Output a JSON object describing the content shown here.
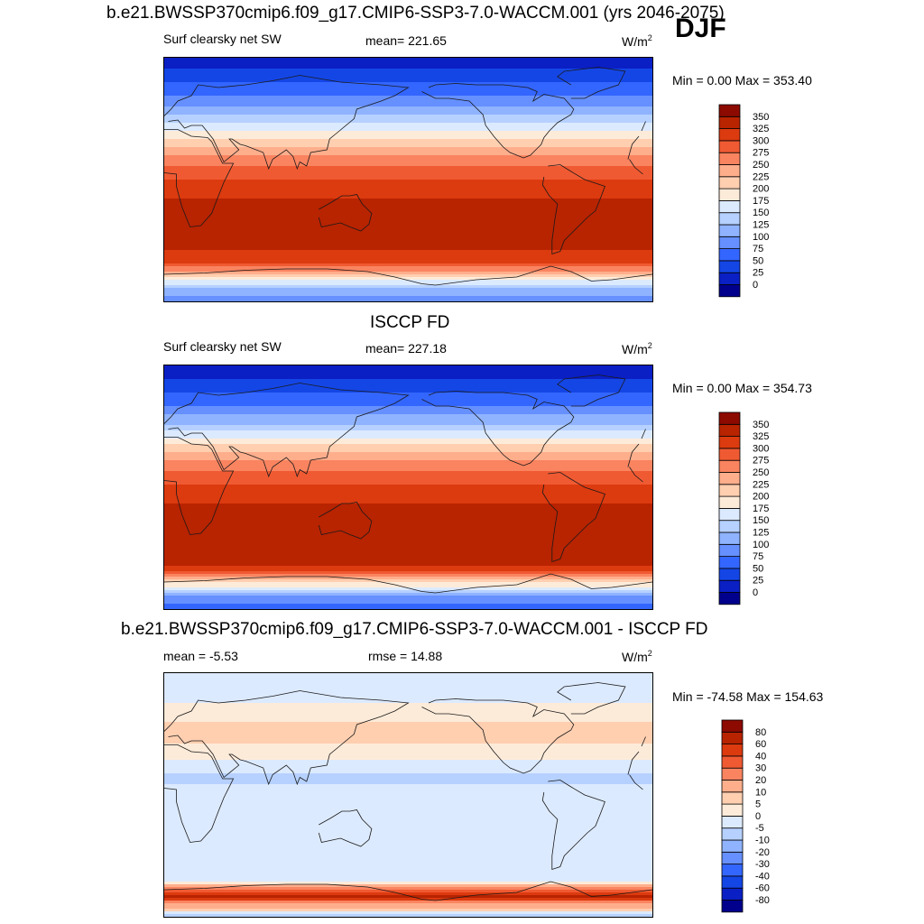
{
  "header": {
    "title": "b.e21.BWSSP370cmip6.f09_g17.CMIP6-SSP3-7.0-WACCM.001 (yrs 2046-2075)",
    "season": "DJF"
  },
  "panels": [
    {
      "title": "",
      "left": "Surf clearsky net SW",
      "center": "mean= 221.65",
      "units": "W/m",
      "units_sup": "2",
      "minmax": "Min =   0.00 Max = 353.40"
    },
    {
      "title": "ISCCP FD",
      "left": "Surf clearsky net SW",
      "center": "mean= 227.18",
      "units": "W/m",
      "units_sup": "2",
      "minmax": "Min =   0.00 Max = 354.73"
    },
    {
      "title": "b.e21.BWSSP370cmip6.f09_g17.CMIP6-SSP3-7.0-WACCM.001 - ISCCP FD",
      "left": "mean =  -5.53",
      "center": "rmse =  14.88",
      "units": "W/m",
      "units_sup": "2",
      "minmax": "Min = -74.58 Max = 154.63"
    }
  ],
  "chart_data": [
    {
      "type": "heatmap",
      "variable": "Surf clearsky net SW",
      "mean": 221.65,
      "min": 0.0,
      "max": 353.4,
      "units": "W/m2",
      "lat_range": [
        -90,
        90
      ],
      "lon_range": [
        0,
        360
      ],
      "zonal_profile": {
        "lat": [
          90,
          75,
          60,
          45,
          30,
          15,
          0,
          -15,
          -30,
          -45,
          -60,
          -70,
          -80,
          -90
        ],
        "value": [
          5,
          40,
          80,
          135,
          200,
          265,
          300,
          325,
          340,
          340,
          310,
          225,
          120,
          80
        ]
      },
      "colorbar": {
        "levels": [
          0,
          25,
          50,
          75,
          100,
          125,
          150,
          175,
          200,
          225,
          250,
          275,
          300,
          325,
          350
        ],
        "colors": [
          "#00008c",
          "#0a1fc4",
          "#1446e6",
          "#3366ff",
          "#6690ff",
          "#8fb3ff",
          "#b6d1ff",
          "#dceaff",
          "#fdebd9",
          "#ffcfb0",
          "#ffae8c",
          "#fa8460",
          "#f05a32",
          "#dc3a0f",
          "#b82300",
          "#8c0a00"
        ]
      }
    },
    {
      "type": "heatmap",
      "variable": "Surf clearsky net SW",
      "source": "ISCCP FD",
      "mean": 227.18,
      "min": 0.0,
      "max": 354.73,
      "units": "W/m2",
      "lat_range": [
        -90,
        90
      ],
      "lon_range": [
        0,
        360
      ],
      "zonal_profile": {
        "lat": [
          90,
          75,
          60,
          45,
          30,
          15,
          0,
          -15,
          -30,
          -45,
          -60,
          -70,
          -80,
          -90
        ],
        "value": [
          5,
          35,
          75,
          130,
          205,
          270,
          305,
          330,
          345,
          345,
          320,
          210,
          100,
          60
        ]
      },
      "colorbar": {
        "levels": [
          0,
          25,
          50,
          75,
          100,
          125,
          150,
          175,
          200,
          225,
          250,
          275,
          300,
          325,
          350
        ],
        "colors": [
          "#00008c",
          "#0a1fc4",
          "#1446e6",
          "#3366ff",
          "#6690ff",
          "#8fb3ff",
          "#b6d1ff",
          "#dceaff",
          "#fdebd9",
          "#ffcfb0",
          "#ffae8c",
          "#fa8460",
          "#f05a32",
          "#dc3a0f",
          "#b82300",
          "#8c0a00"
        ]
      }
    },
    {
      "type": "heatmap",
      "variable": "difference",
      "mean": -5.53,
      "rmse": 14.88,
      "min": -74.58,
      "max": 154.63,
      "units": "W/m2",
      "lat_range": [
        -90,
        90
      ],
      "lon_range": [
        0,
        360
      ],
      "zonal_profile": {
        "lat": [
          90,
          75,
          60,
          45,
          30,
          15,
          0,
          -15,
          -30,
          -45,
          -60,
          -65,
          -70,
          -75,
          -80,
          -90
        ],
        "value": [
          -2,
          -3,
          3,
          8,
          2,
          -6,
          -4,
          -3,
          -5,
          -4,
          -3,
          0,
          30,
          60,
          20,
          -10
        ]
      },
      "colorbar": {
        "levels": [
          -80,
          -60,
          -40,
          -30,
          -20,
          -10,
          -5,
          0,
          5,
          10,
          20,
          30,
          40,
          60,
          80
        ],
        "colors": [
          "#00008c",
          "#0a1fc4",
          "#1446e6",
          "#3366ff",
          "#6690ff",
          "#8fb3ff",
          "#b6d1ff",
          "#dceaff",
          "#fdebd9",
          "#ffcfb0",
          "#ffae8c",
          "#fa8460",
          "#f05a32",
          "#dc3a0f",
          "#b82300",
          "#8c0a00"
        ]
      }
    }
  ]
}
